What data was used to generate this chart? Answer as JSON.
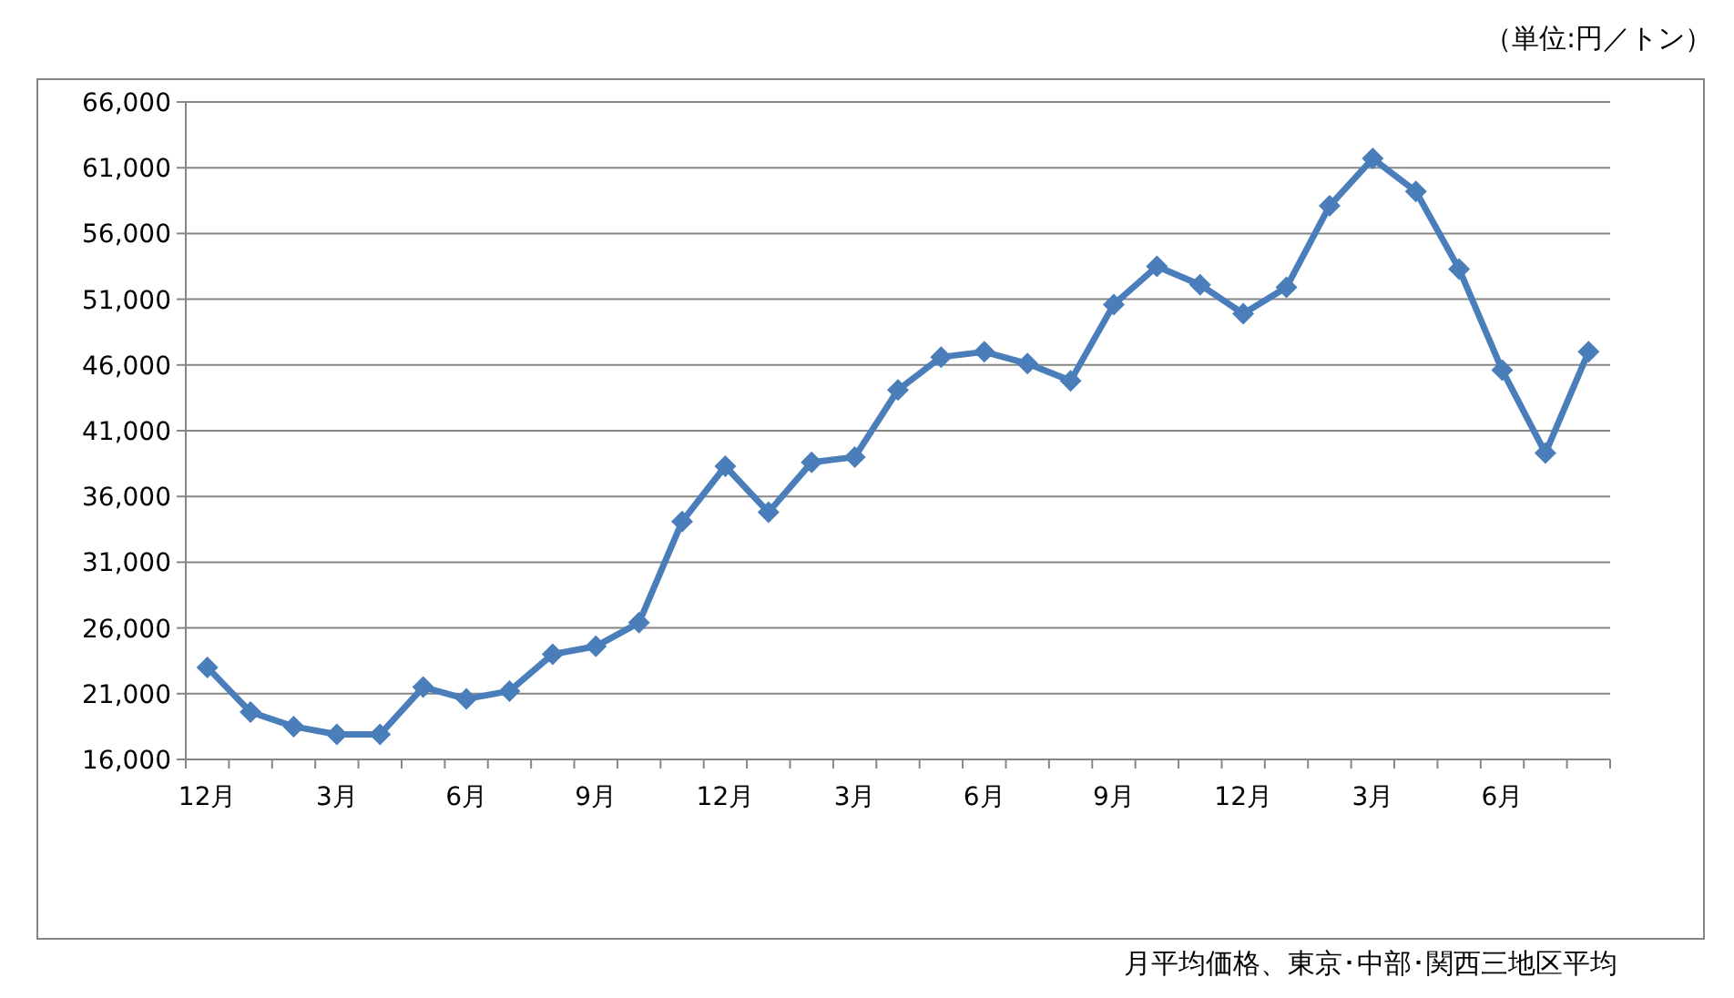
{
  "chart_data": {
    "type": "line",
    "categories": [
      "12月",
      null,
      null,
      "3月",
      null,
      null,
      "6月",
      null,
      null,
      "9月",
      null,
      null,
      "12月",
      null,
      null,
      "3月",
      null,
      null,
      "6月",
      null,
      null,
      "9月",
      null,
      null,
      "12月",
      null,
      null,
      "3月",
      null,
      null,
      "6月",
      null,
      null
    ],
    "series": [
      {
        "color": "#4a7ebb",
        "values": [
          23000,
          19600,
          18500,
          17900,
          17900,
          21500,
          20600,
          21200,
          24000,
          24600,
          26400,
          34100,
          38300,
          34800,
          38600,
          39000,
          44100,
          46600,
          47000,
          46100,
          44800,
          50600,
          53500,
          52100,
          49900,
          51900,
          58100,
          61700,
          59200,
          53300,
          45600,
          39300,
          47000
        ]
      }
    ],
    "ylim": [
      16000,
      66000
    ],
    "yticks": [
      {
        "value": 16000,
        "label": "16,000"
      },
      {
        "value": 21000,
        "label": "21,000"
      },
      {
        "value": 26000,
        "label": "26,000"
      },
      {
        "value": 31000,
        "label": "31,000"
      },
      {
        "value": 36000,
        "label": "36,000"
      },
      {
        "value": 41000,
        "label": "41,000"
      },
      {
        "value": 46000,
        "label": "46,000"
      },
      {
        "value": 51000,
        "label": "51,000"
      },
      {
        "value": 56000,
        "label": "56,000"
      },
      {
        "value": 61000,
        "label": "61,000"
      },
      {
        "value": 66000,
        "label": "66,000"
      }
    ],
    "grid": "y",
    "marker": "diamond",
    "line_style": "solid",
    "annotations": [
      "（単位:円／トン）",
      "月平均価格、東京･中部･関西三地区平均"
    ]
  }
}
